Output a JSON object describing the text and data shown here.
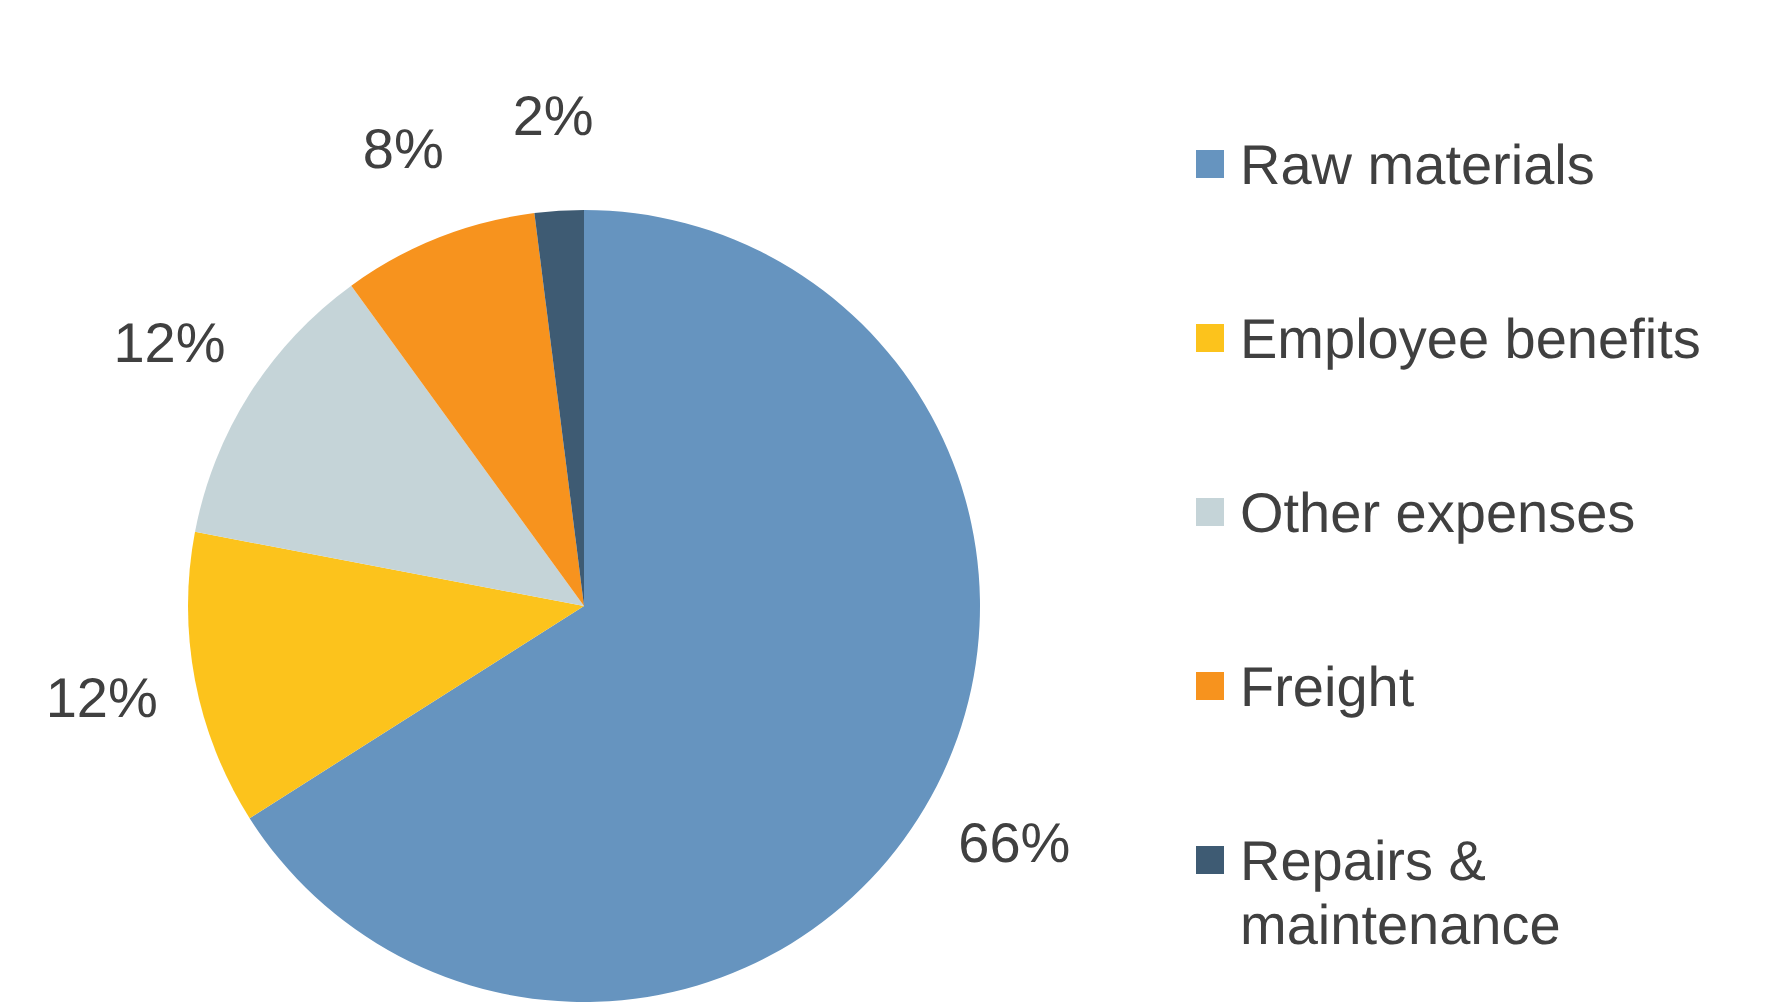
{
  "chart_data": {
    "type": "pie",
    "categories": [
      "Raw materials",
      "Employee benefits",
      "Other expenses",
      "Freight",
      "Repairs & maintenance"
    ],
    "values": [
      66,
      12,
      12,
      8,
      2
    ],
    "value_labels": [
      "66%",
      "12%",
      "12%",
      "8%",
      "2%"
    ],
    "colors": [
      "#6694bf",
      "#fcc31c",
      "#c5d4d8",
      "#f7931e",
      "#3e5b73"
    ],
    "legend": "right"
  }
}
